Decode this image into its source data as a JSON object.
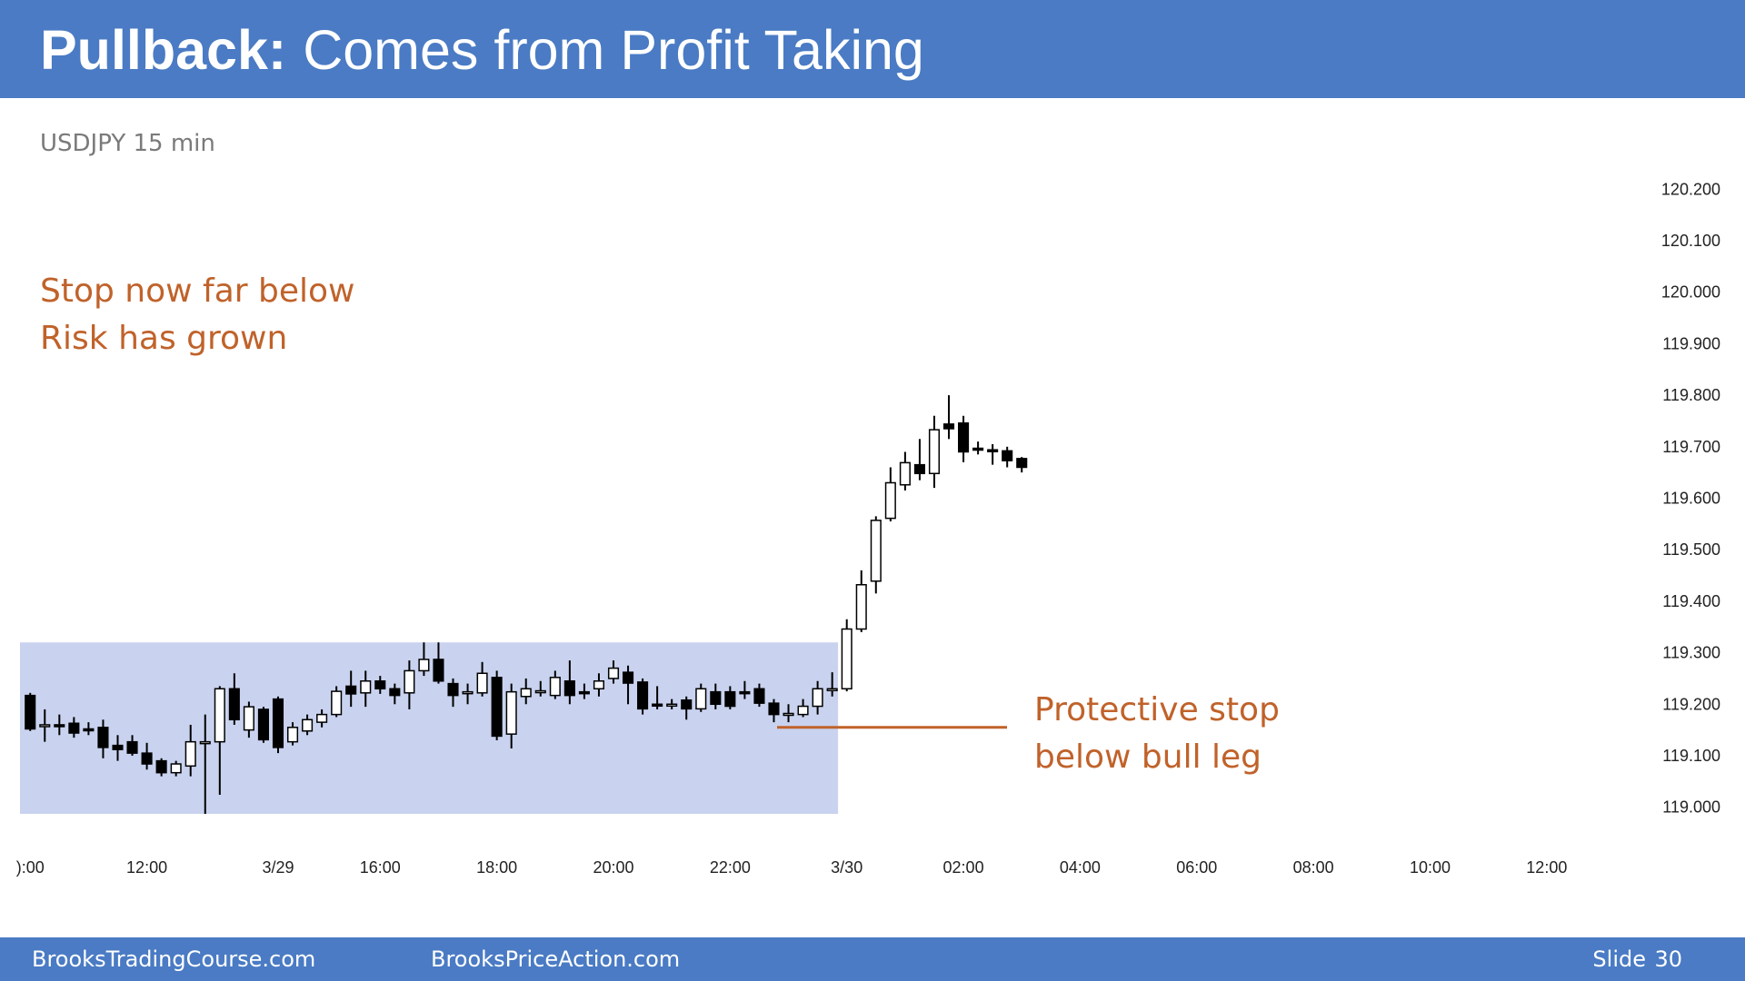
{
  "chart_data": {
    "type": "candlestick",
    "title_bold": "Pullback:",
    "title": "Comes from Profit Taking",
    "subtitle": "USDJPY 15 min",
    "open": [
      119.217,
      119.158,
      119.16,
      119.163,
      119.152,
      119.155,
      119.12,
      119.127,
      119.105,
      119.09,
      119.067,
      119.08,
      119.127,
      119.127,
      119.23,
      119.15,
      119.19,
      119.21,
      119.127,
      119.148,
      119.165,
      119.18,
      119.235,
      119.222,
      119.245,
      119.23,
      119.222,
      119.265,
      119.287,
      119.24,
      119.222,
      119.222,
      119.252,
      119.142,
      119.215,
      119.224,
      119.217,
      119.245,
      119.224,
      119.23,
      119.25,
      119.262,
      119.243,
      119.2,
      119.2,
      119.208,
      119.191,
      119.224,
      119.224,
      119.224,
      119.23,
      119.202,
      119.18,
      119.18,
      119.196,
      119.227,
      119.23,
      119.346,
      119.439,
      119.561,
      119.626,
      119.665,
      119.648,
      119.744,
      119.746,
      119.697,
      119.694,
      119.692,
      119.677
    ],
    "high": [
      119.222,
      119.19,
      119.18,
      119.175,
      119.165,
      119.17,
      119.14,
      119.14,
      119.125,
      119.095,
      119.09,
      119.16,
      119.18,
      119.235,
      119.26,
      119.205,
      119.195,
      119.215,
      119.165,
      119.18,
      119.19,
      119.235,
      119.265,
      119.265,
      119.255,
      119.24,
      119.285,
      119.32,
      119.32,
      119.25,
      119.24,
      119.282,
      119.265,
      119.24,
      119.25,
      119.245,
      119.265,
      119.285,
      119.24,
      119.26,
      119.285,
      119.275,
      119.25,
      119.235,
      119.21,
      119.215,
      119.24,
      119.24,
      119.235,
      119.245,
      119.24,
      119.21,
      119.2,
      119.21,
      119.245,
      119.262,
      119.365,
      119.46,
      119.565,
      119.66,
      119.69,
      119.715,
      119.76,
      119.8,
      119.76,
      119.71,
      119.705,
      119.7,
      119.68
    ],
    "low": [
      119.148,
      119.127,
      119.14,
      119.135,
      119.14,
      119.095,
      119.09,
      119.1,
      119.073,
      119.06,
      119.06,
      119.06,
      118.987,
      119.024,
      119.16,
      119.135,
      119.125,
      119.105,
      119.12,
      119.14,
      119.155,
      119.175,
      119.195,
      119.195,
      119.22,
      119.2,
      119.19,
      119.255,
      119.24,
      119.195,
      119.2,
      119.215,
      119.13,
      119.114,
      119.2,
      119.215,
      119.21,
      119.2,
      119.21,
      119.215,
      119.24,
      119.2,
      119.18,
      119.19,
      119.19,
      119.17,
      119.185,
      119.19,
      119.19,
      119.21,
      119.195,
      119.165,
      119.165,
      119.175,
      119.18,
      119.215,
      119.225,
      119.34,
      119.415,
      119.555,
      119.615,
      119.635,
      119.62,
      119.715,
      119.67,
      119.685,
      119.665,
      119.66,
      119.65
    ],
    "close": [
      119.152,
      119.16,
      119.158,
      119.144,
      119.15,
      119.116,
      119.112,
      119.105,
      119.084,
      119.067,
      119.084,
      119.127,
      119.127,
      119.23,
      119.17,
      119.195,
      119.131,
      119.116,
      119.155,
      119.17,
      119.18,
      119.225,
      119.22,
      119.245,
      119.23,
      119.217,
      119.265,
      119.287,
      119.245,
      119.217,
      119.224,
      119.26,
      119.138,
      119.224,
      119.23,
      119.226,
      119.252,
      119.217,
      119.222,
      119.245,
      119.27,
      119.241,
      119.191,
      119.198,
      119.2,
      119.191,
      119.23,
      119.2,
      119.196,
      119.222,
      119.202,
      119.18,
      119.182,
      119.196,
      119.23,
      119.23,
      119.346,
      119.432,
      119.557,
      119.63,
      119.669,
      119.648,
      119.733,
      119.735,
      119.69,
      119.695,
      119.692,
      119.673,
      119.66
    ],
    "up_color": "#ffffff",
    "down_color": "#000000",
    "range_color": "#c9d3ef",
    "ylim": [
      118.98,
      120.22
    ],
    "yticks": [
      {
        "value": 119.0,
        "label": "119.000"
      },
      {
        "value": 119.1,
        "label": "119.100"
      },
      {
        "value": 119.2,
        "label": "119.200"
      },
      {
        "value": 119.3,
        "label": "119.300"
      },
      {
        "value": 119.4,
        "label": "119.400"
      },
      {
        "value": 119.5,
        "label": "119.500"
      },
      {
        "value": 119.6,
        "label": "119.600"
      },
      {
        "value": 119.7,
        "label": "119.700"
      },
      {
        "value": 119.8,
        "label": "119.800"
      },
      {
        "value": 119.9,
        "label": "119.900"
      },
      {
        "value": 120.0,
        "label": "120.000"
      },
      {
        "value": 120.1,
        "label": "120.100"
      },
      {
        "value": 120.2,
        "label": "120.200"
      }
    ],
    "xlim": [
      -0.7,
      108
    ],
    "xticks": [
      {
        "value": 0,
        "label": "):00"
      },
      {
        "value": 8,
        "label": "12:00"
      },
      {
        "value": 17,
        "label": "3/29"
      },
      {
        "value": 24,
        "label": "16:00"
      },
      {
        "value": 32,
        "label": "18:00"
      },
      {
        "value": 40,
        "label": "20:00"
      },
      {
        "value": 48,
        "label": "22:00"
      },
      {
        "value": 56,
        "label": "3/30"
      },
      {
        "value": 64,
        "label": "02:00"
      },
      {
        "value": 72,
        "label": "04:00"
      },
      {
        "value": 80,
        "label": "06:00"
      },
      {
        "value": 88,
        "label": "08:00"
      },
      {
        "value": 96,
        "label": "10:00"
      },
      {
        "value": 104,
        "label": "12:00"
      }
    ],
    "annotations": [
      {
        "lines": [
          "Stop now far below",
          "Risk has grown"
        ]
      },
      {
        "lines": [
          "Protective stop",
          "below bull leg"
        ],
        "price": 119.155,
        "color": "#c0622a"
      }
    ]
  },
  "footer": {
    "left": "BrooksTradingCourse.com",
    "center": "BrooksPriceAction.com",
    "slide_label": "Slide",
    "slide_number": 30
  }
}
